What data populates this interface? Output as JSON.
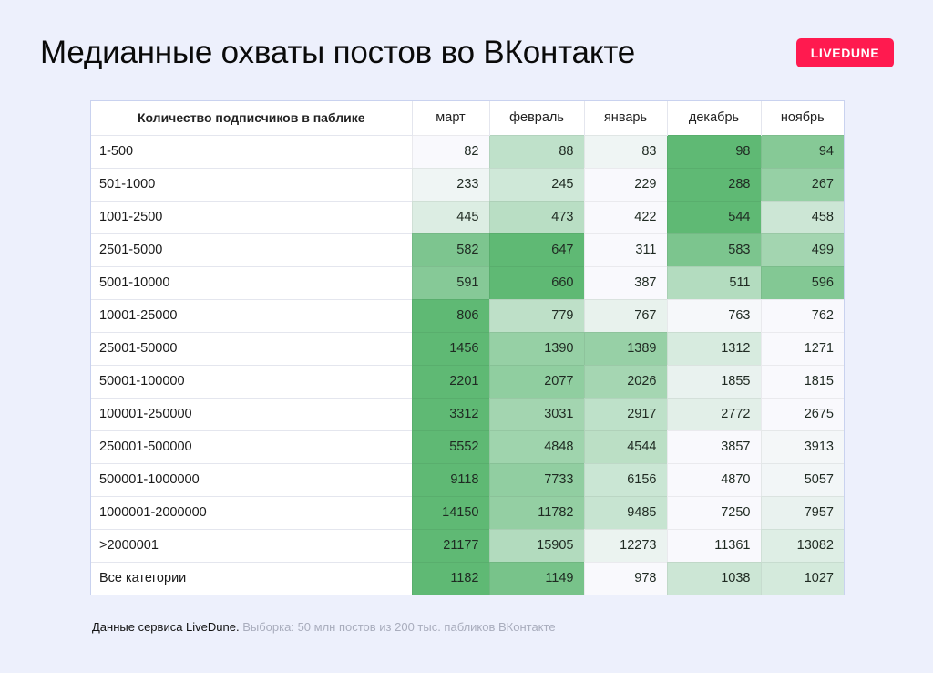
{
  "header": {
    "title": "Медианные охваты постов во ВКонтакте",
    "brand": "LIVEDUNE",
    "brand_color": "#ff1a4f"
  },
  "table": {
    "label_header": "Количество подписчиков в паблике",
    "columns": [
      "март",
      "февраль",
      "январь",
      "декабрь",
      "ноябрь"
    ],
    "rows": [
      {
        "label": "1-500",
        "values": [
          82,
          88,
          83,
          98,
          94
        ]
      },
      {
        "label": "501-1000",
        "values": [
          233,
          245,
          229,
          288,
          267
        ]
      },
      {
        "label": "1001-2500",
        "values": [
          445,
          473,
          422,
          544,
          458
        ]
      },
      {
        "label": "2501-5000",
        "values": [
          582,
          647,
          311,
          583,
          499
        ]
      },
      {
        "label": "5001-10000",
        "values": [
          591,
          660,
          387,
          511,
          596
        ]
      },
      {
        "label": "10001-25000",
        "values": [
          806,
          779,
          767,
          763,
          762
        ]
      },
      {
        "label": "25001-50000",
        "values": [
          1456,
          1390,
          1389,
          1312,
          1271
        ]
      },
      {
        "label": "50001-100000",
        "values": [
          2201,
          2077,
          2026,
          1855,
          1815
        ]
      },
      {
        "label": "100001-250000",
        "values": [
          3312,
          3031,
          2917,
          2772,
          2675
        ]
      },
      {
        "label": "250001-500000",
        "values": [
          5552,
          4848,
          4544,
          3857,
          3913
        ]
      },
      {
        "label": "500001-1000000",
        "values": [
          9118,
          7733,
          6156,
          4870,
          5057
        ]
      },
      {
        "label": "1000001-2000000",
        "values": [
          14150,
          11782,
          9485,
          7250,
          7957
        ]
      },
      {
        "label": ">2000001",
        "values": [
          21177,
          15905,
          12273,
          11361,
          13082
        ]
      },
      {
        "label": "Все категории",
        "values": [
          1182,
          1149,
          978,
          1038,
          1027
        ]
      }
    ],
    "heat_colors": {
      "low": "#f9f9fd",
      "high": "#5fb974"
    }
  },
  "footer": {
    "source": "Данные сервиса LiveDune.",
    "note": "Выборка: 50 млн постов из 200 тыс. пабликов ВКонтакте"
  },
  "chart_data": {
    "type": "heatmap",
    "title": "Медианные охваты постов во ВКонтакте",
    "row_header": "Количество подписчиков в паблике",
    "x": [
      "март",
      "февраль",
      "январь",
      "декабрь",
      "ноябрь"
    ],
    "y": [
      "1-500",
      "501-1000",
      "1001-2500",
      "2501-5000",
      "5001-10000",
      "10001-25000",
      "25001-50000",
      "50001-100000",
      "100001-250000",
      "250001-500000",
      "500001-1000000",
      "1000001-2000000",
      ">2000001",
      "Все категории"
    ],
    "values": [
      [
        82,
        88,
        83,
        98,
        94
      ],
      [
        233,
        245,
        229,
        288,
        267
      ],
      [
        445,
        473,
        422,
        544,
        458
      ],
      [
        582,
        647,
        311,
        583,
        499
      ],
      [
        591,
        660,
        387,
        511,
        596
      ],
      [
        806,
        779,
        767,
        763,
        762
      ],
      [
        1456,
        1390,
        1389,
        1312,
        1271
      ],
      [
        2201,
        2077,
        2026,
        1855,
        1815
      ],
      [
        3312,
        3031,
        2917,
        2772,
        2675
      ],
      [
        5552,
        4848,
        4544,
        3857,
        3913
      ],
      [
        9118,
        7733,
        6156,
        4870,
        5057
      ],
      [
        14150,
        11782,
        9485,
        7250,
        7957
      ],
      [
        21177,
        15905,
        12273,
        11361,
        13082
      ],
      [
        1182,
        1149,
        978,
        1038,
        1027
      ]
    ],
    "color_scale": "per-row, white (min) to green (max)",
    "note": "Данные сервиса LiveDune. Выборка: 50 млн постов из 200 тыс. пабликов ВКонтакте"
  }
}
